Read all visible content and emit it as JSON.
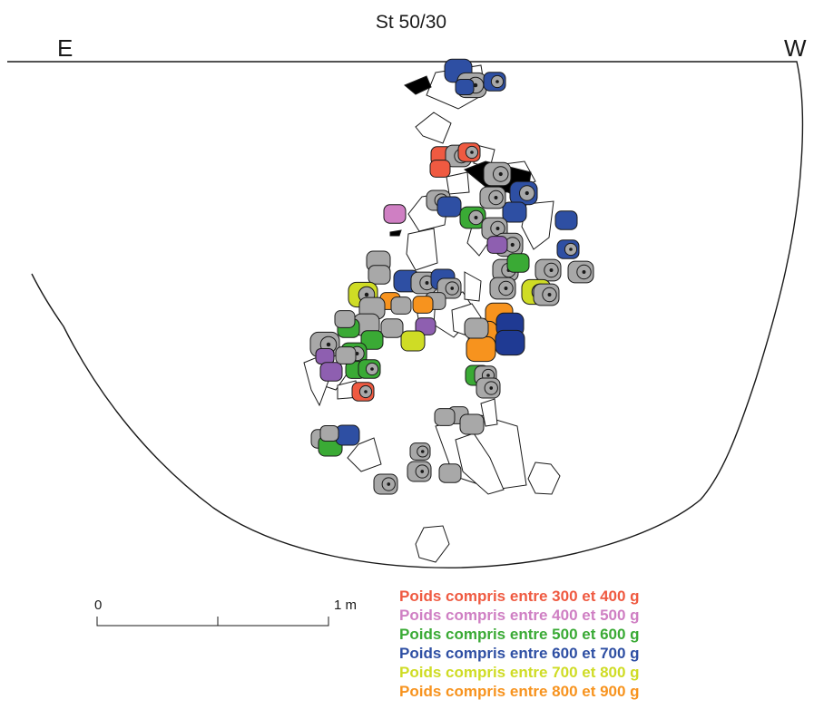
{
  "title": "St 50/30",
  "orientation": {
    "left": "E",
    "right": "W"
  },
  "scale": {
    "start_label": "0",
    "end_label": "1 m"
  },
  "legend": [
    {
      "label": "Poids compris entre 300 et 400 g",
      "color": "#ef5a41"
    },
    {
      "label": "Poids compris entre 400 et 500 g",
      "color": "#cf7fc3"
    },
    {
      "label": "Poids compris entre 500 et 600 g",
      "color": "#3aaa35"
    },
    {
      "label": "Poids compris entre 600 et 700 g",
      "color": "#2e4fa3"
    },
    {
      "label": "Poids compris entre 700 et 800 g",
      "color": "#cfdc25"
    },
    {
      "label": "Poids compris entre 800 et 900 g",
      "color": "#f7931e"
    }
  ],
  "colors": {
    "unweighed": "#a8a8a8",
    "dark_blue": "#1f3a93",
    "purple": "#8e5fb0",
    "black": "#000000",
    "stone": "#ffffff"
  }
}
